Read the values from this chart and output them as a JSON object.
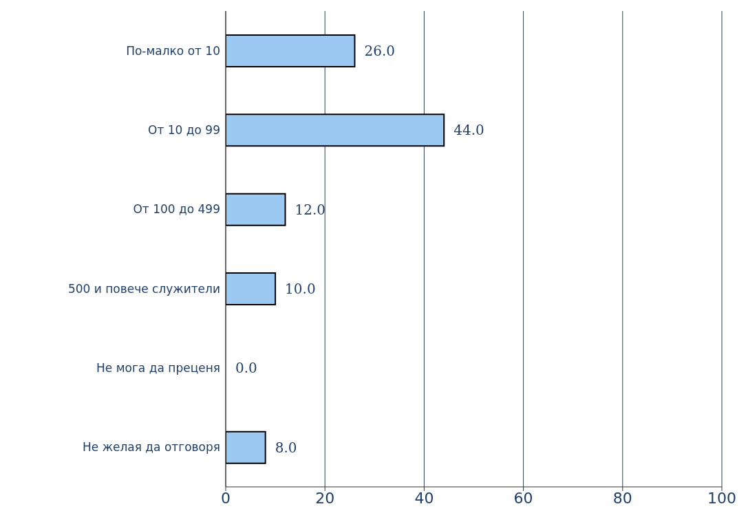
{
  "chart_data": {
    "type": "bar",
    "orientation": "horizontal",
    "categories": [
      "По-малко от 10",
      "От 10 до 99",
      "От 100 до 499",
      "500 и повече служители",
      "Не мога да преценя",
      "Не желая да отговоря"
    ],
    "values": [
      26.0,
      44.0,
      12.0,
      10.0,
      0.0,
      8.0
    ],
    "value_labels": [
      "26.0",
      "44.0",
      "12.0",
      "10.0",
      "0.0",
      "8.0"
    ],
    "color": "#9cc9f2",
    "xlim": [
      0,
      100
    ],
    "xticks": [
      0,
      20,
      40,
      60,
      80,
      100
    ],
    "grid": "x"
  }
}
